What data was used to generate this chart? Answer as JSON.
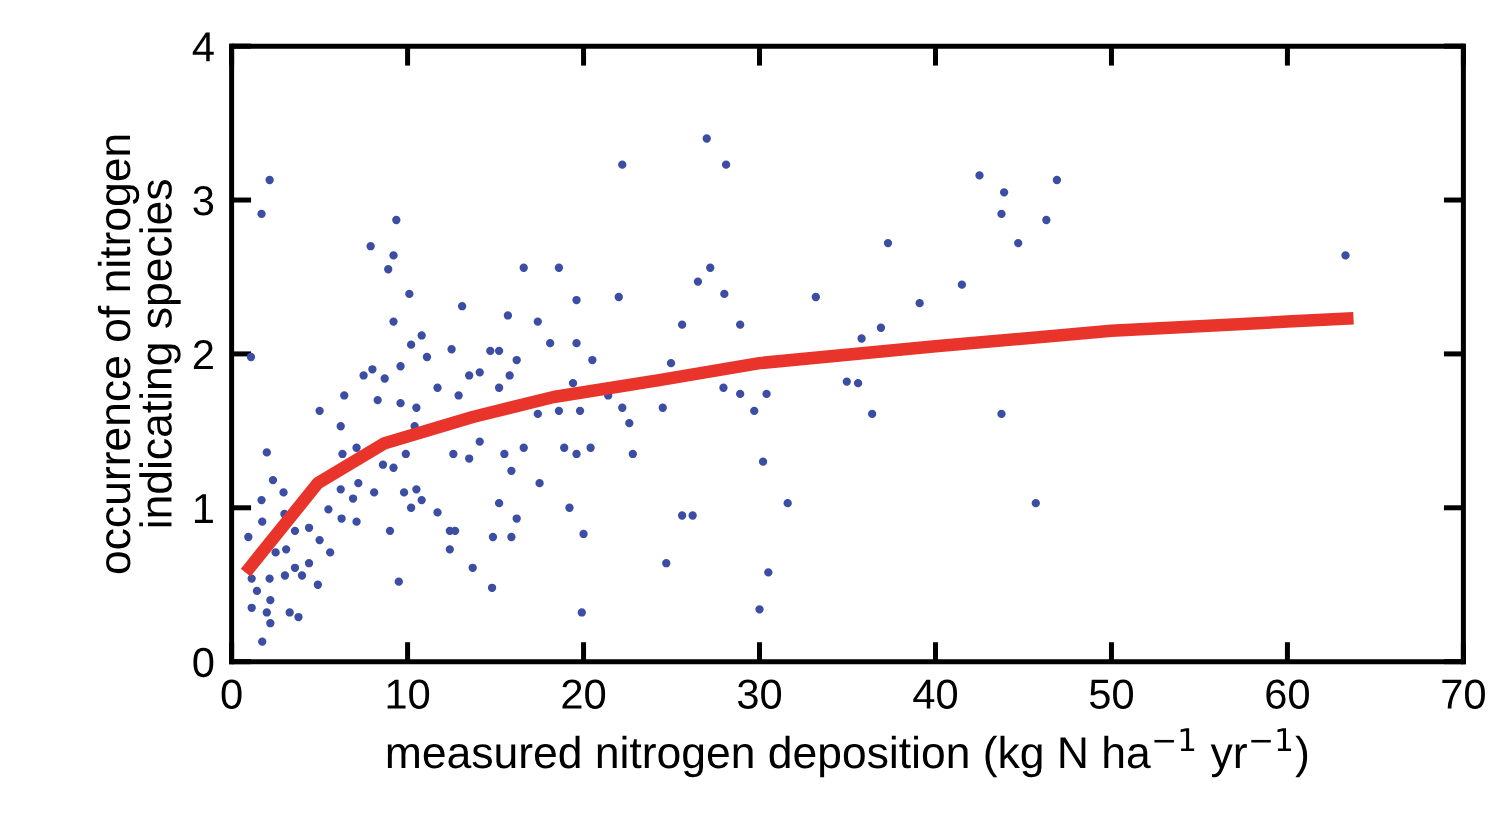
{
  "chart_data": {
    "type": "scatter",
    "xlabel": "measured nitrogen deposition (kg N ha$^{−1}$ yr$^{−1}$)",
    "ylabel": "occurrence of nitrogen\nindicating species",
    "xlim": [
      0,
      70
    ],
    "xticks": [
      0,
      10,
      20,
      30,
      40,
      50,
      60,
      70
    ],
    "ylim": [
      0,
      4
    ],
    "yticks": [
      0,
      1,
      2,
      3,
      4
    ],
    "grid": false,
    "series": [
      {
        "color": "#3b4ea3",
        "marker": "circle",
        "x": [
          2.16,
          1.7,
          1.1,
          9.36,
          7.9,
          9.2,
          8.9,
          10.1,
          9.2,
          13.1,
          16.6,
          18.6,
          19.6,
          22.0,
          22.2,
          15.7,
          17.4,
          18.1,
          19.6,
          20.5,
          10.8,
          10.2,
          12.5,
          14.7,
          15.2,
          16.2,
          11.1,
          9.6,
          8.0,
          7.5,
          8.7,
          6.4,
          5.0,
          8.3,
          9.6,
          11.7,
          12.9,
          13.5,
          14.1,
          15.2,
          15.8,
          17.4,
          18.6,
          19.4,
          19.8,
          21.4,
          22.2,
          22.6,
          22.8,
          20.4,
          18.9,
          19.6,
          16.6,
          15.9,
          15.5,
          14.1,
          13.5,
          12.6,
          10.4,
          10.5,
          6.2,
          7.1,
          6.3,
          9.9,
          8.6,
          9.2,
          7.2,
          8.1,
          6.2,
          6.9,
          9.8,
          10.5,
          10.8,
          10.2,
          11.7,
          15.2,
          17.5,
          19.2,
          5.5,
          6.25,
          7.1,
          5.0,
          5.6,
          4.4,
          3.6,
          2.95,
          2.35,
          2.0,
          1.7,
          1.74,
          0.95,
          3.0,
          3.1,
          2.5,
          3.03,
          4.0,
          4.9,
          4.4,
          3.6,
          1.44,
          1.14,
          2.16,
          2.2,
          1.14,
          2.0,
          3.3,
          3.8,
          2.2,
          1.74,
          9.0,
          9.5,
          12.4,
          12.7,
          12.4,
          13.7,
          14.8,
          14.85,
          16.2,
          15.9,
          20.0,
          19.9,
          27.0,
          28.1,
          42.5,
          43.9,
          46.9,
          43.75,
          46.3,
          44.7,
          37.3,
          63.3,
          27.2,
          26.5,
          28.0,
          33.2,
          41.5,
          39.1,
          25.6,
          28.9,
          35.8,
          36.9,
          24.97,
          24.5,
          27.95,
          28.9,
          30.4,
          29.7,
          34.96,
          35.6,
          36.4,
          43.75,
          30.2,
          31.6,
          45.7,
          25.6,
          26.2,
          24.7,
          30.5,
          30.0
        ],
        "values": [
          3.13,
          2.91,
          1.98,
          2.87,
          2.7,
          2.64,
          2.55,
          2.39,
          2.21,
          2.31,
          2.56,
          2.56,
          2.35,
          2.37,
          3.23,
          2.25,
          2.21,
          2.07,
          2.07,
          1.96,
          2.12,
          2.06,
          2.03,
          2.02,
          2.02,
          1.96,
          1.98,
          1.92,
          1.9,
          1.86,
          1.84,
          1.73,
          1.63,
          1.7,
          1.68,
          1.78,
          1.73,
          1.86,
          1.88,
          1.78,
          1.86,
          1.61,
          1.63,
          1.81,
          1.63,
          1.73,
          1.65,
          1.55,
          1.35,
          1.39,
          1.39,
          1.35,
          1.39,
          1.24,
          1.35,
          1.43,
          1.32,
          1.35,
          1.53,
          1.65,
          1.53,
          1.39,
          1.35,
          1.35,
          1.28,
          1.26,
          1.16,
          1.1,
          1.12,
          1.06,
          1.1,
          1.12,
          1.05,
          1.0,
          0.97,
          1.03,
          1.16,
          1.0,
          0.99,
          0.93,
          0.91,
          0.79,
          0.71,
          0.87,
          0.85,
          1.1,
          1.18,
          1.36,
          1.05,
          0.91,
          0.81,
          0.96,
          0.73,
          0.71,
          0.56,
          0.56,
          0.5,
          0.64,
          0.61,
          0.46,
          0.54,
          0.54,
          0.4,
          0.35,
          0.32,
          0.32,
          0.29,
          0.25,
          0.13,
          0.85,
          0.52,
          0.85,
          0.85,
          0.73,
          0.61,
          0.48,
          0.81,
          0.93,
          0.81,
          0.83,
          0.32,
          3.4,
          3.23,
          3.16,
          3.05,
          3.13,
          2.91,
          2.87,
          2.72,
          2.72,
          2.64,
          2.56,
          2.47,
          2.39,
          2.37,
          2.45,
          2.33,
          2.19,
          2.19,
          2.1,
          2.17,
          1.94,
          1.65,
          1.78,
          1.74,
          1.74,
          1.63,
          1.82,
          1.81,
          1.61,
          1.61,
          1.3,
          1.03,
          1.03,
          0.95,
          0.95,
          0.64,
          0.58,
          0.34
        ]
      },
      {
        "type": "line",
        "color": "#e8342a",
        "marker": "none",
        "line_style": "solid",
        "x": [
          1.02,
          4.9,
          8.7,
          13.7,
          18.3,
          24.3,
          30.0,
          40.0,
          50.0,
          60.0,
          63.4
        ],
        "values": [
          0.61,
          1.16,
          1.42,
          1.59,
          1.72,
          1.83,
          1.94,
          2.05,
          2.15,
          2.21,
          2.23
        ]
      }
    ]
  }
}
